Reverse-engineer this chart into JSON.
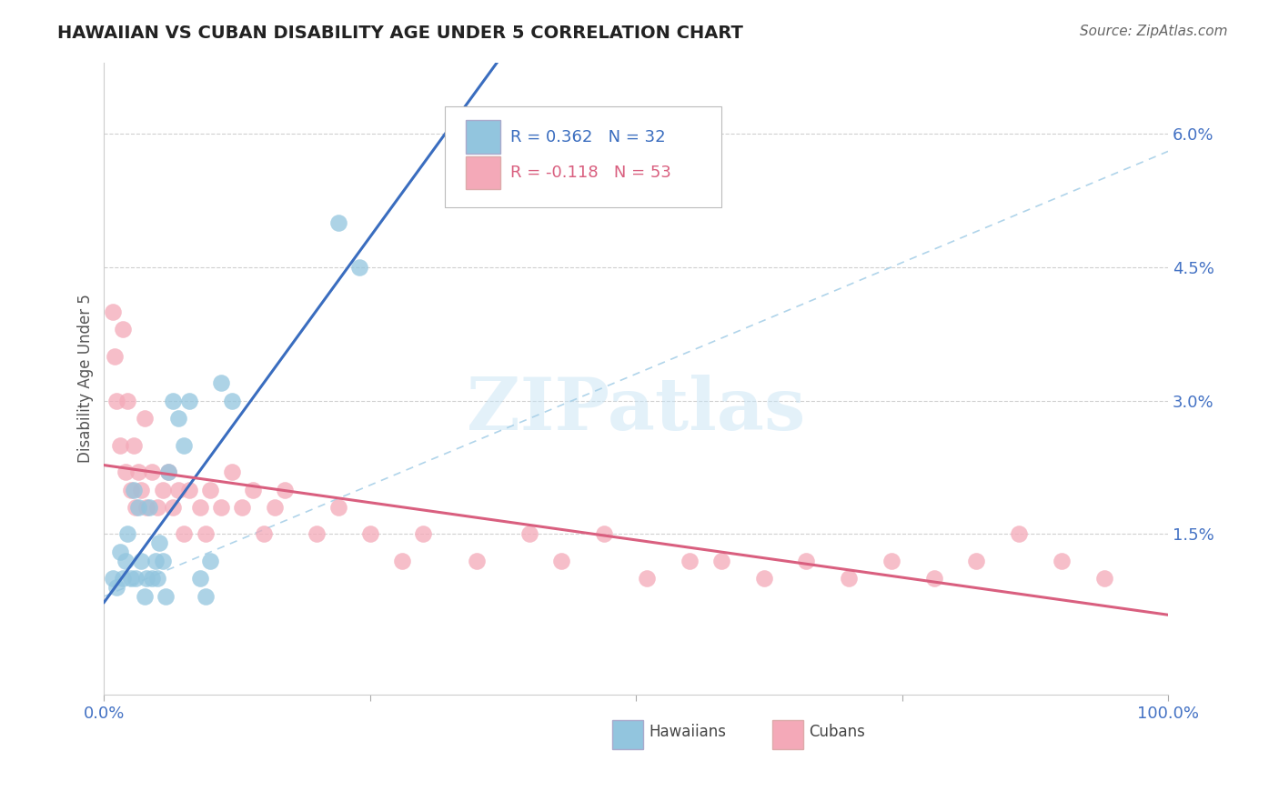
{
  "title": "HAWAIIAN VS CUBAN DISABILITY AGE UNDER 5 CORRELATION CHART",
  "source": "Source: ZipAtlas.com",
  "ylabel": "Disability Age Under 5",
  "xlim": [
    0.0,
    1.0
  ],
  "ylim": [
    -0.003,
    0.068
  ],
  "y_ticks": [
    0.0,
    0.015,
    0.03,
    0.045,
    0.06
  ],
  "y_tick_labels": [
    "",
    "1.5%",
    "3.0%",
    "4.5%",
    "6.0%"
  ],
  "hawaiian_R": 0.362,
  "hawaiian_N": 32,
  "cuban_R": -0.118,
  "cuban_N": 53,
  "hawaiian_color": "#92c5de",
  "cuban_color": "#f4a9b8",
  "trendline_hawaiian_color": "#3a6dbf",
  "trendline_cuban_color": "#d95f7f",
  "dashed_line_color": "#a8d0e8",
  "watermark": "ZIPatlas",
  "hawaiian_x": [
    0.008,
    0.012,
    0.015,
    0.018,
    0.02,
    0.022,
    0.025,
    0.028,
    0.03,
    0.032,
    0.035,
    0.038,
    0.04,
    0.042,
    0.045,
    0.048,
    0.05,
    0.052,
    0.055,
    0.058,
    0.06,
    0.065,
    0.07,
    0.075,
    0.08,
    0.09,
    0.095,
    0.1,
    0.11,
    0.12,
    0.22,
    0.24
  ],
  "hawaiian_y": [
    0.01,
    0.009,
    0.013,
    0.01,
    0.012,
    0.015,
    0.01,
    0.02,
    0.01,
    0.018,
    0.012,
    0.008,
    0.01,
    0.018,
    0.01,
    0.012,
    0.01,
    0.014,
    0.012,
    0.008,
    0.022,
    0.03,
    0.028,
    0.025,
    0.03,
    0.01,
    0.008,
    0.012,
    0.032,
    0.03,
    0.05,
    0.045
  ],
  "cuban_x": [
    0.008,
    0.01,
    0.012,
    0.015,
    0.018,
    0.02,
    0.022,
    0.025,
    0.028,
    0.03,
    0.032,
    0.035,
    0.038,
    0.04,
    0.045,
    0.05,
    0.055,
    0.06,
    0.065,
    0.07,
    0.075,
    0.08,
    0.09,
    0.095,
    0.1,
    0.11,
    0.12,
    0.13,
    0.14,
    0.15,
    0.16,
    0.17,
    0.2,
    0.22,
    0.25,
    0.28,
    0.3,
    0.35,
    0.4,
    0.43,
    0.47,
    0.51,
    0.55,
    0.58,
    0.62,
    0.66,
    0.7,
    0.74,
    0.78,
    0.82,
    0.86,
    0.9,
    0.94
  ],
  "cuban_y": [
    0.04,
    0.035,
    0.03,
    0.025,
    0.038,
    0.022,
    0.03,
    0.02,
    0.025,
    0.018,
    0.022,
    0.02,
    0.028,
    0.018,
    0.022,
    0.018,
    0.02,
    0.022,
    0.018,
    0.02,
    0.015,
    0.02,
    0.018,
    0.015,
    0.02,
    0.018,
    0.022,
    0.018,
    0.02,
    0.015,
    0.018,
    0.02,
    0.015,
    0.018,
    0.015,
    0.012,
    0.015,
    0.012,
    0.015,
    0.012,
    0.015,
    0.01,
    0.012,
    0.012,
    0.01,
    0.012,
    0.01,
    0.012,
    0.01,
    0.012,
    0.015,
    0.012,
    0.01
  ]
}
